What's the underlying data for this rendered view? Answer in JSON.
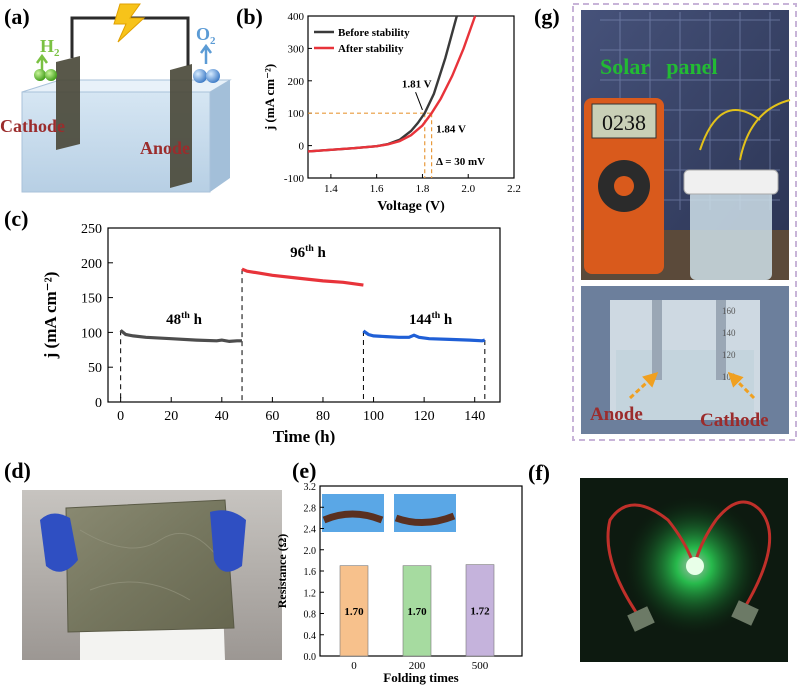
{
  "panels": {
    "a": {
      "label": "(a)",
      "h2": "H",
      "h2_sub": "2",
      "o2": "O",
      "o2_sub": "2",
      "cathode": "Cathode",
      "anode": "Anode"
    },
    "d": {
      "label": "(d)"
    },
    "e_label": "(e)",
    "f": {
      "label": "(f)"
    },
    "g": {
      "label": "(g)",
      "solar_panel": "Solar   panel",
      "meter_reading": "0238",
      "anode": "Anode",
      "cathode": "Cathode",
      "beaker_marks": [
        "160",
        "140",
        "120",
        "100"
      ]
    }
  },
  "colors": {
    "before": "#3a3a3a",
    "after": "#e8333a",
    "seg_48": "#4d4d4d",
    "seg_96": "#e8333a",
    "seg_144": "#1f5fd6",
    "bar_0": "#f7c18c",
    "bar_200": "#a6dba0",
    "bar_500": "#c5b3dc",
    "dash_guide": "#e89a3c",
    "callout_text": "#9b2c2c",
    "solar_text": "#22bb33",
    "arrow_orange": "#f0a020",
    "dashed_border": "#c8b4d8",
    "led_green": "#33ff66"
  },
  "chart_data": [
    {
      "panel": "(b)",
      "type": "line",
      "xlabel": "Voltage (V)",
      "ylabel": "j (mA cm⁻²)",
      "xlim": [
        1.3,
        2.2
      ],
      "ylim": [
        -100,
        400
      ],
      "xticks": [
        "1.4",
        "1.6",
        "1.8",
        "2.0",
        "2.2"
      ],
      "yticks": [
        "-100",
        "0",
        "100",
        "200",
        "300",
        "400"
      ],
      "legend": "top-left",
      "series": [
        {
          "name": "Before stability",
          "x": [
            1.3,
            1.5,
            1.6,
            1.65,
            1.7,
            1.75,
            1.78,
            1.81,
            1.85,
            1.9,
            1.95
          ],
          "y": [
            -18,
            -8,
            -2,
            5,
            18,
            45,
            70,
            100,
            160,
            270,
            400
          ]
        },
        {
          "name": "After stability",
          "x": [
            1.3,
            1.5,
            1.6,
            1.65,
            1.7,
            1.75,
            1.8,
            1.84,
            1.88,
            1.93,
            1.98,
            2.03
          ],
          "y": [
            -18,
            -8,
            -2,
            4,
            14,
            32,
            62,
            100,
            145,
            215,
            300,
            400
          ]
        }
      ],
      "annotations": [
        "1.81 V",
        "1.84 V",
        "Δ = 30 mV"
      ]
    },
    {
      "panel": "(c)",
      "type": "line",
      "xlabel": "Time (h)",
      "ylabel": "j (mA cm⁻²)",
      "xlim": [
        -5,
        150
      ],
      "ylim": [
        0,
        250
      ],
      "xticks": [
        "0",
        "20",
        "40",
        "60",
        "80",
        "100",
        "120",
        "140"
      ],
      "yticks": [
        "0",
        "50",
        "100",
        "150",
        "200",
        "250"
      ],
      "series": [
        {
          "name": "48th h",
          "x": [
            0,
            2,
            5,
            10,
            20,
            30,
            38,
            40,
            43,
            46,
            48
          ],
          "y": [
            103,
            97,
            95,
            93,
            91,
            89,
            88,
            89,
            87,
            88,
            88
          ]
        },
        {
          "name": "96th h",
          "x": [
            48,
            50,
            55,
            60,
            70,
            80,
            88,
            92,
            96
          ],
          "y": [
            191,
            188,
            185,
            182,
            178,
            174,
            172,
            170,
            168
          ]
        },
        {
          "name": "144th h",
          "x": [
            96,
            98,
            100,
            105,
            110,
            114,
            116,
            118,
            122,
            130,
            138,
            143,
            144
          ],
          "y": [
            102,
            97,
            95,
            94,
            93,
            93,
            96,
            93,
            91,
            90,
            89,
            88,
            89
          ]
        }
      ],
      "annotations": [
        "48th h",
        "96th h",
        "144th h"
      ]
    },
    {
      "panel": "(e)",
      "type": "bar",
      "xlabel": "Folding times",
      "ylabel": "Resistance (Ω)",
      "ylim": [
        0,
        3.2
      ],
      "categories": [
        "0",
        "200",
        "500"
      ],
      "values": [
        1.7,
        1.7,
        1.72
      ],
      "value_labels": [
        "1.70",
        "1.70",
        "1.72"
      ],
      "yticks": [
        "0.0",
        "0.4",
        "0.8",
        "1.2",
        "1.6",
        "2.0",
        "2.4",
        "2.8",
        "3.2"
      ]
    }
  ]
}
